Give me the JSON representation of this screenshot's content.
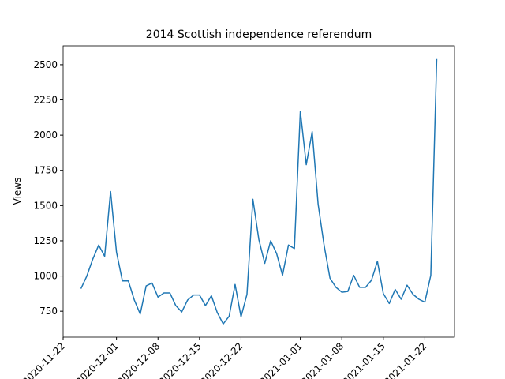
{
  "chart_data": {
    "type": "line",
    "title": "2014 Scottish independence referendum",
    "y_label": "Views",
    "x": [
      "2020-11-25",
      "2020-11-26",
      "2020-11-27",
      "2020-11-28",
      "2020-11-29",
      "2020-11-30",
      "2020-12-01",
      "2020-12-02",
      "2020-12-03",
      "2020-12-04",
      "2020-12-05",
      "2020-12-06",
      "2020-12-07",
      "2020-12-08",
      "2020-12-09",
      "2020-12-10",
      "2020-12-11",
      "2020-12-12",
      "2020-12-13",
      "2020-12-14",
      "2020-12-15",
      "2020-12-16",
      "2020-12-17",
      "2020-12-18",
      "2020-12-19",
      "2020-12-20",
      "2020-12-21",
      "2020-12-22",
      "2020-12-23",
      "2020-12-24",
      "2020-12-25",
      "2020-12-26",
      "2020-12-27",
      "2020-12-28",
      "2020-12-29",
      "2020-12-30",
      "2020-12-31",
      "2021-01-01",
      "2021-01-02",
      "2021-01-03",
      "2021-01-04",
      "2021-01-05",
      "2021-01-06",
      "2021-01-07",
      "2021-01-08",
      "2021-01-09",
      "2021-01-10",
      "2021-01-11",
      "2021-01-12",
      "2021-01-13",
      "2021-01-14",
      "2021-01-15",
      "2021-01-16",
      "2021-01-17",
      "2021-01-18",
      "2021-01-19",
      "2021-01-20",
      "2021-01-21",
      "2021-01-22",
      "2021-01-23",
      "2021-01-24"
    ],
    "series": [
      {
        "name": "Views",
        "color": "#1f77b4",
        "values": [
          910,
          1000,
          1120,
          1220,
          1140,
          1600,
          1170,
          965,
          965,
          830,
          730,
          930,
          950,
          850,
          880,
          880,
          790,
          745,
          830,
          865,
          865,
          790,
          860,
          740,
          660,
          715,
          940,
          710,
          870,
          1545,
          1260,
          1090,
          1250,
          1160,
          1005,
          1220,
          1195,
          2170,
          1790,
          2025,
          1510,
          1220,
          985,
          920,
          885,
          890,
          1005,
          920,
          920,
          970,
          1105,
          875,
          805,
          905,
          835,
          935,
          870,
          835,
          815,
          1005,
          2540
        ]
      }
    ],
    "xlim": [
      "2020-11-22",
      "2021-01-27"
    ],
    "xticks": [
      "2020-11-22",
      "2020-12-01",
      "2020-12-08",
      "2020-12-15",
      "2020-12-22",
      "2021-01-01",
      "2021-01-08",
      "2021-01-15",
      "2021-01-22"
    ],
    "ylim": [
      566,
      2634
    ],
    "yticks": [
      750,
      1000,
      1250,
      1500,
      1750,
      2000,
      2250,
      2500
    ]
  }
}
